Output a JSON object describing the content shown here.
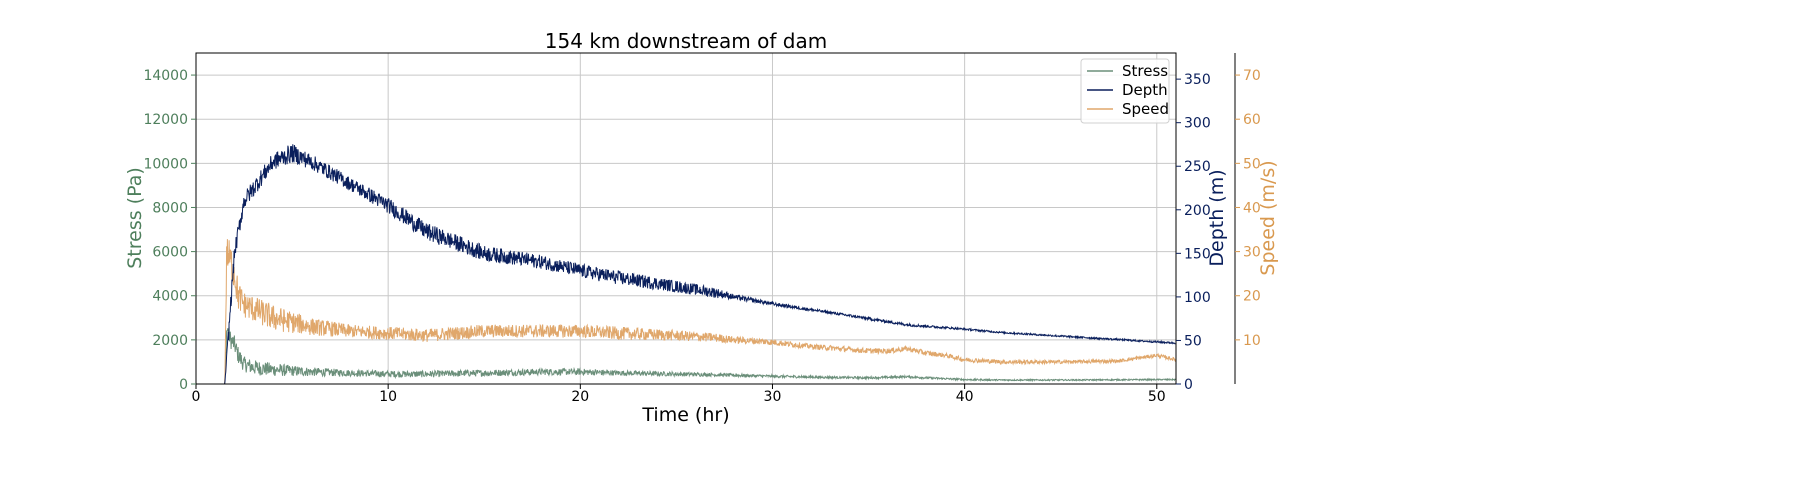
{
  "chart_data": {
    "type": "line",
    "title": "154 km downstream of dam",
    "xlabel": "Time (hr)",
    "xlim": [
      0,
      51
    ],
    "xticks": [
      0,
      10,
      20,
      30,
      40,
      50
    ],
    "grid": true,
    "legend_position": "top-right",
    "axes": {
      "stress": {
        "label": "Stress (Pa)",
        "lim": [
          0,
          15000
        ],
        "ticks": [
          0,
          2000,
          4000,
          6000,
          8000,
          10000,
          12000,
          14000
        ],
        "color": "#4e7f5c"
      },
      "depth": {
        "label": "Depth (m)",
        "lim": [
          0,
          380
        ],
        "ticks": [
          0,
          50,
          100,
          150,
          200,
          250,
          300,
          350
        ],
        "color": "#0a1f5c"
      },
      "speed": {
        "label": "Speed (m/s)",
        "lim": [
          0,
          75
        ],
        "ticks": [
          10,
          20,
          30,
          40,
          50,
          60,
          70
        ],
        "color": "#d9994f"
      }
    },
    "series": [
      {
        "name": "Stress",
        "axis": "stress",
        "color": "#6b8f7a",
        "x": [
          0,
          1.5,
          1.6,
          1.7,
          1.8,
          2.0,
          2.2,
          2.5,
          3,
          4,
          5,
          6,
          8,
          10,
          12,
          15,
          18,
          20,
          22,
          25,
          27,
          30,
          33,
          35,
          37,
          38,
          40,
          42,
          45,
          48,
          50,
          51
        ],
        "y": [
          0,
          0,
          2500,
          2300,
          2000,
          1800,
          1300,
          900,
          750,
          650,
          600,
          550,
          500,
          450,
          450,
          500,
          550,
          550,
          500,
          450,
          420,
          350,
          300,
          280,
          330,
          280,
          200,
          180,
          180,
          190,
          200,
          200
        ],
        "noise": [
          0,
          0,
          500,
          400,
          400,
          400,
          400,
          350,
          350,
          300,
          250,
          200,
          150,
          150,
          150,
          150,
          150,
          150,
          120,
          100,
          80,
          60,
          50,
          50,
          50,
          50,
          40,
          30,
          30,
          30,
          30,
          30
        ]
      },
      {
        "name": "Depth",
        "axis": "depth",
        "color": "#0a1f5c",
        "x": [
          0,
          1.5,
          1.7,
          2.0,
          2.5,
          3,
          3.5,
          4,
          5,
          6,
          8,
          10,
          12,
          15,
          18,
          20,
          22,
          25,
          27,
          28,
          30,
          33,
          35,
          37,
          40,
          42,
          45,
          48,
          51
        ],
        "y": [
          0,
          0,
          60,
          150,
          210,
          225,
          240,
          255,
          265,
          255,
          230,
          205,
          175,
          150,
          140,
          130,
          122,
          112,
          105,
          100,
          92,
          82,
          75,
          68,
          63,
          59,
          55,
          51,
          47
        ],
        "noise": [
          0,
          0,
          10,
          10,
          10,
          10,
          10,
          10,
          11,
          9,
          8,
          9,
          10,
          9,
          8,
          8,
          8,
          7,
          6,
          3,
          2,
          1.5,
          1.5,
          1.5,
          1,
          1,
          1,
          1,
          1
        ]
      },
      {
        "name": "Speed",
        "axis": "speed",
        "color": "#e0a76b",
        "x": [
          0,
          1.5,
          1.6,
          1.7,
          1.8,
          2.0,
          2.2,
          2.5,
          3,
          4,
          5,
          6,
          8,
          10,
          12,
          15,
          18,
          20,
          22,
          25,
          27,
          28,
          30,
          32,
          35,
          36,
          37,
          38,
          39,
          40,
          42,
          45,
          48,
          50,
          51
        ],
        "y": [
          0,
          0,
          30,
          29,
          28,
          25,
          20,
          18,
          17,
          15,
          14,
          13,
          12,
          11.5,
          11,
          12,
          12,
          12,
          11.5,
          11,
          10.5,
          10,
          9.5,
          8.5,
          7.5,
          7.5,
          8,
          7,
          6.5,
          5.5,
          5,
          5,
          5.2,
          6.5,
          5.5
        ],
        "noise": [
          0,
          0,
          4,
          4,
          4,
          4,
          3.5,
          3,
          3,
          3,
          2.5,
          2,
          1.5,
          1.5,
          1.5,
          1.5,
          1.5,
          1.5,
          1.5,
          1.2,
          1,
          0.8,
          0.7,
          0.6,
          0.6,
          0.6,
          0.6,
          0.6,
          0.5,
          0.5,
          0.5,
          0.4,
          0.4,
          0.4,
          0.4
        ]
      }
    ]
  }
}
